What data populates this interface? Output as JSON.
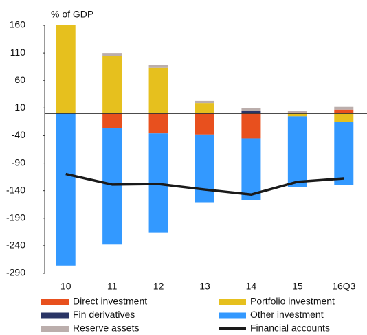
{
  "chart_data": {
    "type": "bar",
    "stacked": true,
    "y_label": "% of GDP",
    "categories": [
      "10",
      "11",
      "12",
      "13",
      "14",
      "15",
      "16Q3"
    ],
    "series": [
      {
        "name": "Direct investment",
        "color": "#e8501e",
        "values": [
          0,
          -27,
          -36,
          -38,
          -45,
          2,
          7
        ]
      },
      {
        "name": "Portfolio investment",
        "color": "#e6c01e",
        "values": [
          160,
          104,
          83,
          19,
          0,
          -5,
          -15
        ]
      },
      {
        "name": "Fin derivatives",
        "color": "#2a3566",
        "values": [
          0,
          0,
          0,
          0,
          5,
          0,
          0
        ]
      },
      {
        "name": "Other investment",
        "color": "#3399ff",
        "values": [
          -276,
          -211,
          -180,
          -123,
          -112,
          -129,
          -115
        ]
      },
      {
        "name": "Reserve assets",
        "color": "#bbaeac",
        "values": [
          0,
          6,
          5,
          4,
          5,
          3,
          5
        ]
      },
      {
        "name": "Financial accounts",
        "type": "line",
        "color": "#1a1a1a",
        "values": [
          -110,
          -129,
          -128,
          -138,
          -147,
          -124,
          -118
        ]
      }
    ],
    "ylim": [
      -290,
      160
    ],
    "yticks": [
      160,
      110,
      60,
      10,
      -40,
      -90,
      -140,
      -190,
      -240,
      -290
    ]
  }
}
